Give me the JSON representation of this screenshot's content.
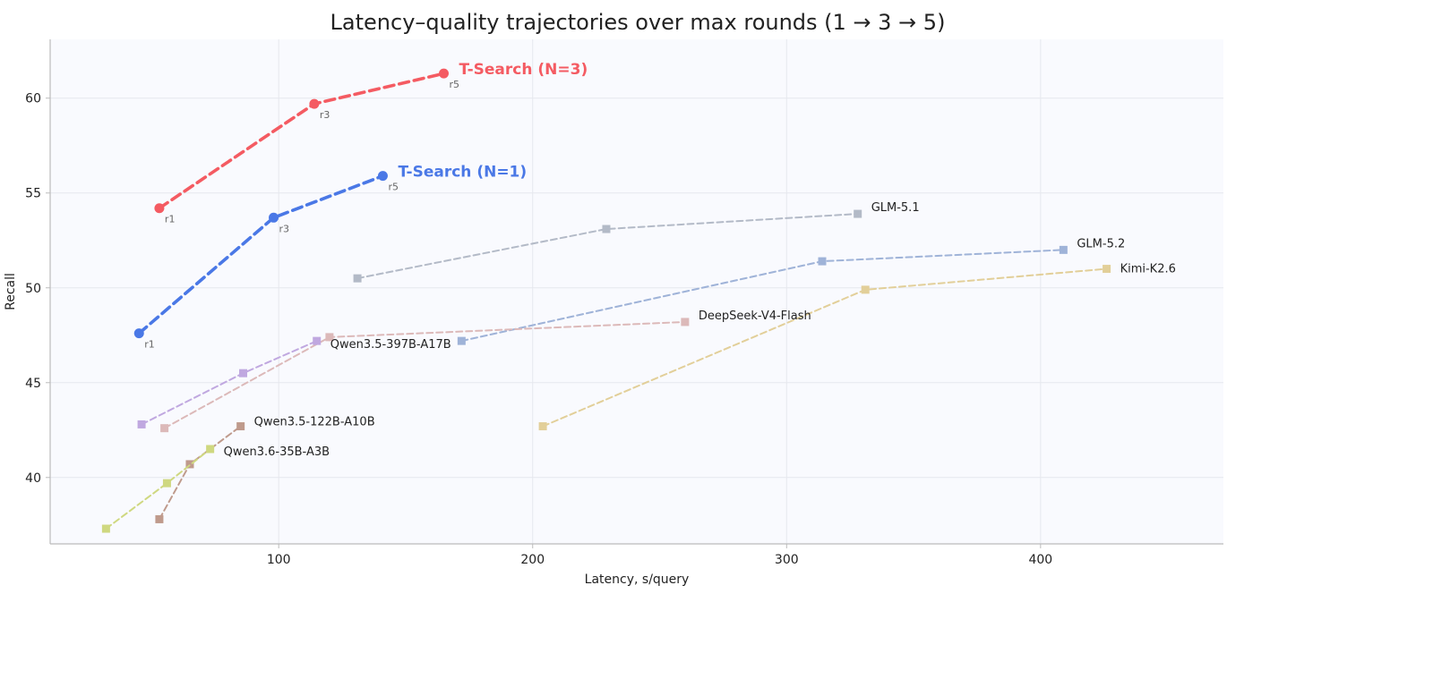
{
  "chart_data": {
    "type": "line",
    "title": "Latency–quality trajectories over max rounds (1 → 3 → 5)",
    "xlabel": "Latency, s/query",
    "ylabel": "Recall",
    "xlim": [
      10,
      472
    ],
    "ylim": [
      36.5,
      63.1
    ],
    "xticks": [
      100,
      200,
      300,
      400
    ],
    "yticks": [
      40,
      45,
      50,
      55,
      60
    ],
    "grid": true,
    "series": [
      {
        "name": "T-Search (N=3)",
        "highlight": true,
        "color": "#f45b62",
        "marker": "circle",
        "points": [
          {
            "x": 53,
            "y": 54.2,
            "label": "r1"
          },
          {
            "x": 114,
            "y": 59.7,
            "label": "r3"
          },
          {
            "x": 165,
            "y": 61.3,
            "label": "r5"
          }
        ]
      },
      {
        "name": "T-Search (N=1)",
        "highlight": true,
        "color": "#4a78e6",
        "marker": "circle",
        "points": [
          {
            "x": 45,
            "y": 47.6,
            "label": "r1"
          },
          {
            "x": 98,
            "y": 53.7,
            "label": "r3"
          },
          {
            "x": 141,
            "y": 55.9,
            "label": "r5"
          }
        ]
      },
      {
        "name": "GLM-5.1",
        "color": "#b3bac7",
        "marker": "square",
        "points": [
          {
            "x": 131,
            "y": 50.5
          },
          {
            "x": 229,
            "y": 53.1
          },
          {
            "x": 328,
            "y": 53.9
          }
        ]
      },
      {
        "name": "GLM-5.2",
        "color": "#9fb3d8",
        "marker": "square",
        "points": [
          {
            "x": 172,
            "y": 47.2
          },
          {
            "x": 314,
            "y": 51.4
          },
          {
            "x": 409,
            "y": 52.0
          }
        ]
      },
      {
        "name": "Kimi-K2.6",
        "color": "#e2cf99",
        "marker": "square",
        "points": [
          {
            "x": 204,
            "y": 42.7
          },
          {
            "x": 331,
            "y": 49.9
          },
          {
            "x": 426,
            "y": 51.0
          }
        ]
      },
      {
        "name": "DeepSeek-V4-Flash",
        "color": "#dcb9b9",
        "marker": "square",
        "points": [
          {
            "x": 55,
            "y": 42.6
          },
          {
            "x": 120,
            "y": 47.4
          },
          {
            "x": 260,
            "y": 48.2
          }
        ]
      },
      {
        "name": "Qwen3.5-397B-A17B",
        "color": "#c0a8e0",
        "marker": "square",
        "points": [
          {
            "x": 46,
            "y": 42.8
          },
          {
            "x": 86,
            "y": 45.5
          },
          {
            "x": 115,
            "y": 47.2
          }
        ]
      },
      {
        "name": "Qwen3.5-122B-A10B",
        "color": "#bf9a8c",
        "marker": "square",
        "points": [
          {
            "x": 53,
            "y": 37.8
          },
          {
            "x": 65,
            "y": 40.7
          },
          {
            "x": 85,
            "y": 42.7
          }
        ]
      },
      {
        "name": "Qwen3.6-35B-A3B",
        "color": "#cfd880",
        "marker": "square",
        "points": [
          {
            "x": 32,
            "y": 37.3
          },
          {
            "x": 56,
            "y": 39.7
          },
          {
            "x": 73,
            "y": 41.5
          }
        ]
      }
    ]
  }
}
